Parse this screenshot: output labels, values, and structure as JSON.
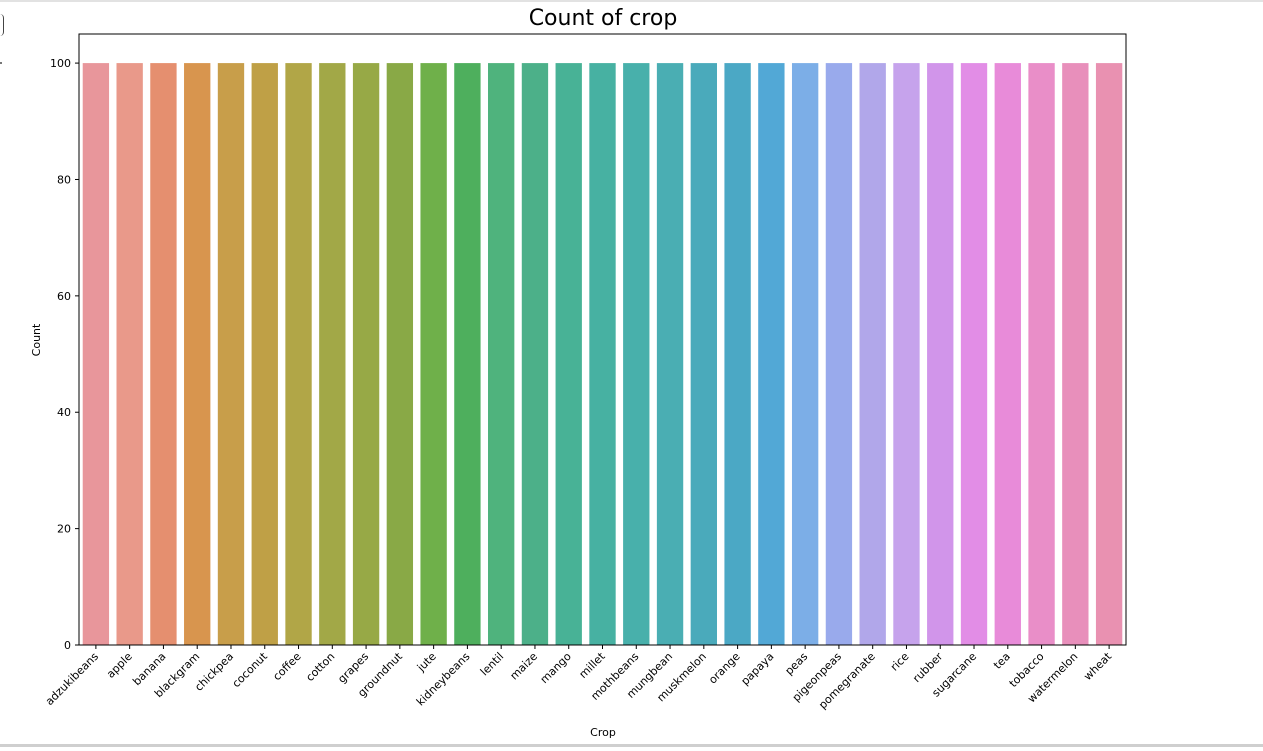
{
  "chart_data": {
    "type": "bar",
    "title": "Count of crop",
    "xlabel": "Crop",
    "ylabel": "Count",
    "ylim": [
      0,
      105
    ],
    "yticks": [
      0,
      20,
      40,
      60,
      80,
      100
    ],
    "grid": false,
    "legend": "none",
    "categories": [
      "adzukibeans",
      "apple",
      "banana",
      "blackgram",
      "chickpea",
      "coconut",
      "coffee",
      "cotton",
      "grapes",
      "groundnut",
      "jute",
      "kidneybeans",
      "lentil",
      "maize",
      "mango",
      "millet",
      "mothbeans",
      "mungbean",
      "muskmelon",
      "orange",
      "papaya",
      "peas",
      "pigeonpeas",
      "pomegranate",
      "rice",
      "rubber",
      "sugarcane",
      "tea",
      "tobacco",
      "watermelon",
      "wheat"
    ],
    "values": [
      100,
      100,
      100,
      100,
      100,
      100,
      100,
      100,
      100,
      100,
      100,
      100,
      100,
      100,
      100,
      100,
      100,
      100,
      100,
      100,
      100,
      100,
      100,
      100,
      100,
      100,
      100,
      100,
      100,
      100,
      100
    ],
    "colors": [
      "#e8969b",
      "#e9998a",
      "#e58f6f",
      "#d8954e",
      "#c89e4a",
      "#bfa046",
      "#b1a647",
      "#a2a847",
      "#97a946",
      "#89a946",
      "#6fb04a",
      "#4eaf5d",
      "#4fb37d",
      "#4cb089",
      "#48b296",
      "#47b1a2",
      "#48b0ab",
      "#4aaeb3",
      "#4aaabb",
      "#4ba8c5",
      "#52a8d6",
      "#7caee7",
      "#99aaec",
      "#b1a7ea",
      "#c6a3ec",
      "#d195ea",
      "#e28de6",
      "#e88bd9",
      "#e98ec8",
      "#e88fbb",
      "#e991b1"
    ]
  }
}
